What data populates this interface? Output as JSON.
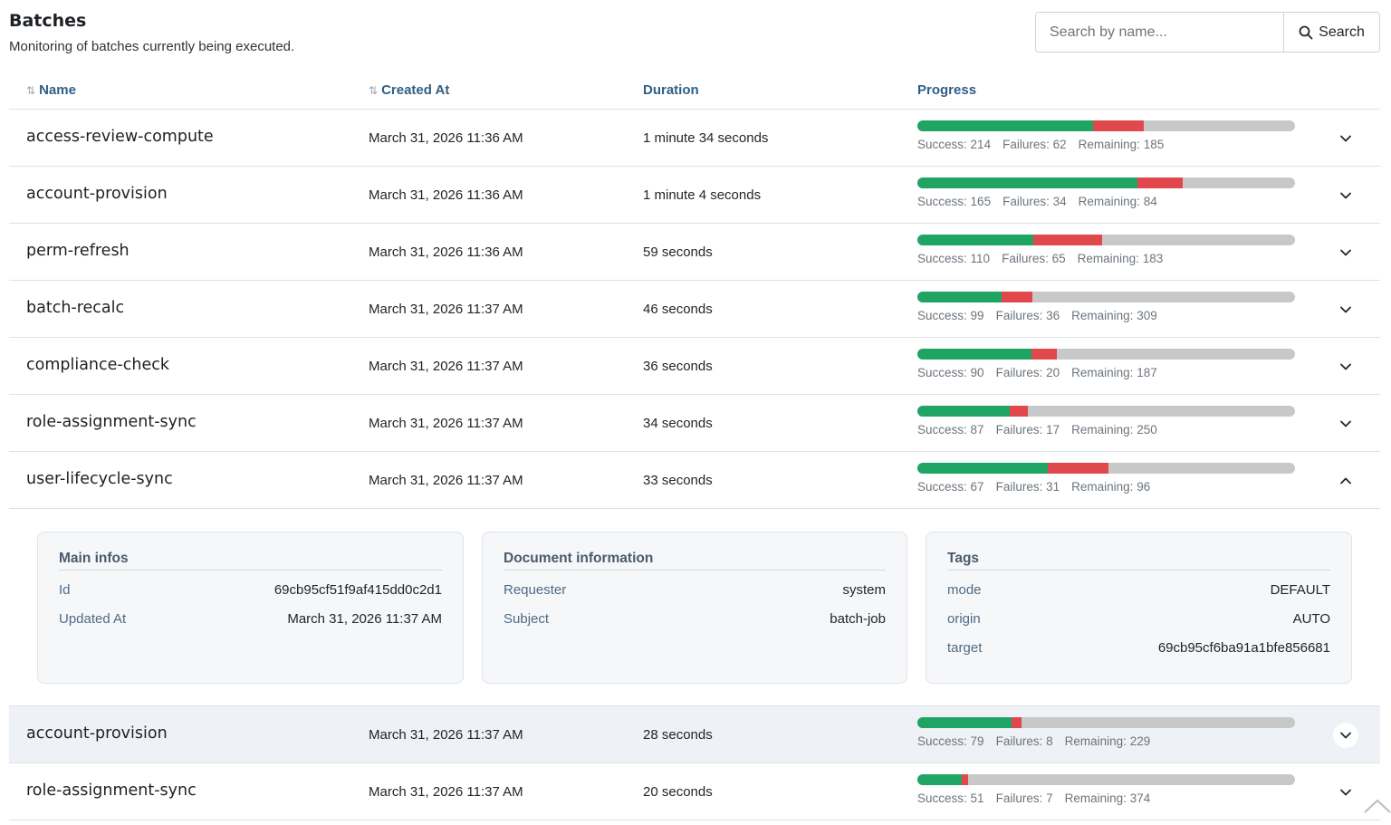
{
  "header": {
    "title": "Batches",
    "subtitle": "Monitoring of batches currently being executed."
  },
  "search": {
    "placeholder": "Search by name...",
    "button_label": "Search"
  },
  "table": {
    "columns": {
      "name": "Name",
      "created_at": "Created At",
      "duration": "Duration",
      "progress": "Progress"
    },
    "labels": {
      "success": "Success:",
      "failures": "Failures:",
      "remaining": "Remaining:"
    },
    "rows": [
      {
        "name": "access-review-compute",
        "created_at": "March 31, 2026 11:36 AM",
        "duration": "1 minute 34 seconds",
        "success": 214,
        "failures": 62,
        "remaining": 185,
        "expanded": false
      },
      {
        "name": "account-provision",
        "created_at": "March 31, 2026 11:36 AM",
        "duration": "1 minute 4 seconds",
        "success": 165,
        "failures": 34,
        "remaining": 84,
        "expanded": false
      },
      {
        "name": "perm-refresh",
        "created_at": "March 31, 2026 11:36 AM",
        "duration": "59 seconds",
        "success": 110,
        "failures": 65,
        "remaining": 183,
        "expanded": false
      },
      {
        "name": "batch-recalc",
        "created_at": "March 31, 2026 11:37 AM",
        "duration": "46 seconds",
        "success": 99,
        "failures": 36,
        "remaining": 309,
        "expanded": false
      },
      {
        "name": "compliance-check",
        "created_at": "March 31, 2026 11:37 AM",
        "duration": "36 seconds",
        "success": 90,
        "failures": 20,
        "remaining": 187,
        "expanded": false
      },
      {
        "name": "role-assignment-sync",
        "created_at": "March 31, 2026 11:37 AM",
        "duration": "34 seconds",
        "success": 87,
        "failures": 17,
        "remaining": 250,
        "expanded": false
      },
      {
        "name": "user-lifecycle-sync",
        "created_at": "March 31, 2026 11:37 AM",
        "duration": "33 seconds",
        "success": 67,
        "failures": 31,
        "remaining": 96,
        "expanded": true
      },
      {
        "name": "account-provision",
        "created_at": "March 31, 2026 11:37 AM",
        "duration": "28 seconds",
        "success": 79,
        "failures": 8,
        "remaining": 229,
        "expanded": false,
        "hover": true
      },
      {
        "name": "role-assignment-sync",
        "created_at": "March 31, 2026 11:37 AM",
        "duration": "20 seconds",
        "success": 51,
        "failures": 7,
        "remaining": 374,
        "expanded": false
      }
    ]
  },
  "details": {
    "main_infos": {
      "title": "Main infos",
      "items": [
        {
          "key": "Id",
          "value": "69cb95cf51f9af415dd0c2d1"
        },
        {
          "key": "Updated At",
          "value": "March 31, 2026 11:37 AM"
        }
      ]
    },
    "document_information": {
      "title": "Document information",
      "items": [
        {
          "key": "Requester",
          "value": "system"
        },
        {
          "key": "Subject",
          "value": "batch-job"
        }
      ]
    },
    "tags": {
      "title": "Tags",
      "items": [
        {
          "key": "mode",
          "value": "DEFAULT"
        },
        {
          "key": "origin",
          "value": "AUTO"
        },
        {
          "key": "target",
          "value": "69cb95cf6ba91a1bfe856681"
        }
      ]
    }
  },
  "colors": {
    "success": "#20a464",
    "failure": "#e0484c",
    "remaining": "#c8c8c8",
    "header_text": "#2f5f86"
  },
  "icons": {
    "search": "search-icon",
    "sort": "sort-icon",
    "expand": "chevron-down-icon",
    "collapse": "chevron-up-icon",
    "scroll_top": "scroll-top-icon"
  }
}
